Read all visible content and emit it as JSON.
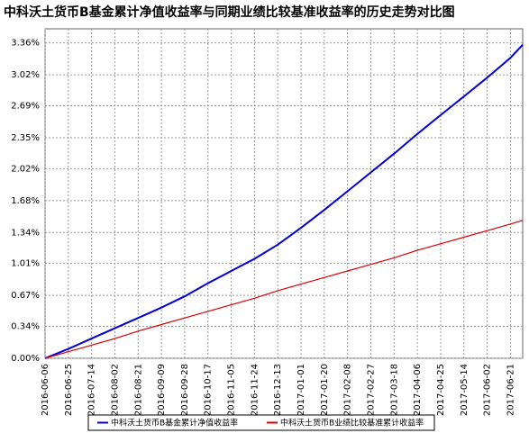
{
  "chart_data": {
    "type": "line",
    "title": "中科沃土货币B基金累计净值收益率与同期业绩比较基准收益率的历史走势对比图",
    "x": [
      "2016-06-06",
      "2016-06-25",
      "2016-07-14",
      "2016-08-02",
      "2016-08-21",
      "2016-09-09",
      "2016-09-28",
      "2016-10-17",
      "2016-11-05",
      "2016-11-24",
      "2016-12-13",
      "2017-01-01",
      "2017-01-20",
      "2017-02-08",
      "2017-02-27",
      "2017-03-18",
      "2017-04-06",
      "2017-04-25",
      "2017-05-14",
      "2017-06-02",
      "2017-06-21",
      "2017-07-01"
    ],
    "series": [
      {
        "name": "中科沃土货币B基金累计净值收益率",
        "color": "#0000dd",
        "values": [
          0,
          0.1,
          0.21,
          0.32,
          0.43,
          0.54,
          0.66,
          0.8,
          0.93,
          1.06,
          1.21,
          1.39,
          1.58,
          1.78,
          1.98,
          2.18,
          2.39,
          2.59,
          2.79,
          2.99,
          3.2,
          3.34
        ]
      },
      {
        "name": "中科沃土货币B业绩比较基准累计收益率",
        "color": "#dd0000",
        "values": [
          0,
          0.07,
          0.14,
          0.21,
          0.29,
          0.36,
          0.43,
          0.5,
          0.57,
          0.64,
          0.72,
          0.79,
          0.86,
          0.93,
          1.0,
          1.07,
          1.15,
          1.22,
          1.29,
          1.36,
          1.43,
          1.47
        ]
      }
    ],
    "xlim": [
      "2016-06-06",
      "2017-07-01"
    ],
    "xticks": [
      "2016-06-06",
      "2016-06-25",
      "2016-07-14",
      "2016-08-02",
      "2016-08-21",
      "2016-09-09",
      "2016-09-28",
      "2016-10-17",
      "2016-11-05",
      "2016-11-24",
      "2016-12-13",
      "2017-01-01",
      "2017-01-20",
      "2017-02-08",
      "2017-02-27",
      "2017-03-18",
      "2017-04-06",
      "2017-04-25",
      "2017-05-14",
      "2017-06-02",
      "2017-06-21"
    ],
    "ylim": [
      0,
      3.51
    ],
    "yticks": [
      {
        "value": 0,
        "label": "0.00%"
      },
      {
        "value": 0.34,
        "label": "0.34%"
      },
      {
        "value": 0.67,
        "label": "0.67%"
      },
      {
        "value": 1.01,
        "label": "1.01%"
      },
      {
        "value": 1.34,
        "label": "1.34%"
      },
      {
        "value": 1.68,
        "label": "1.68%"
      },
      {
        "value": 2.02,
        "label": "2.02%"
      },
      {
        "value": 2.35,
        "label": "2.35%"
      },
      {
        "value": 2.69,
        "label": "2.69%"
      },
      {
        "value": 3.02,
        "label": "3.02%"
      },
      {
        "value": 3.36,
        "label": "3.36%"
      }
    ],
    "grid": true
  }
}
